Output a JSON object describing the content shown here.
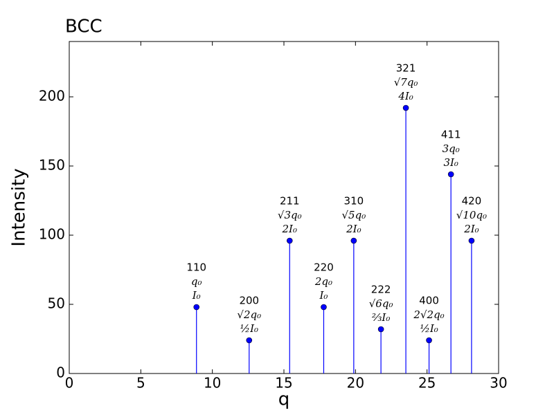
{
  "chart_data": {
    "type": "stem",
    "title": "BCC",
    "x_label": "q",
    "y_label": "Intensity",
    "x": [
      8.89,
      12.57,
      15.4,
      17.78,
      19.88,
      21.78,
      23.52,
      25.14,
      26.67,
      28.11
    ],
    "values": [
      48,
      24,
      96,
      48,
      96,
      32,
      192,
      24,
      144,
      96
    ],
    "point_labels": [
      [
        "110",
        "q₀",
        "I₀"
      ],
      [
        "200",
        "√2q₀",
        "½I₀"
      ],
      [
        "211",
        "√3q₀",
        "2I₀"
      ],
      [
        "220",
        "2q₀",
        "I₀"
      ],
      [
        "310",
        "√5q₀",
        "2I₀"
      ],
      [
        "222",
        "√6q₀",
        "⅔I₀"
      ],
      [
        "321",
        "√7q₀",
        "4I₀"
      ],
      [
        "400",
        "2√2q₀",
        "½I₀"
      ],
      [
        "411",
        "3q₀",
        "3I₀"
      ],
      [
        "420",
        "√10q₀",
        "2I₀"
      ]
    ],
    "color": "#0000ff",
    "xlim": [
      0,
      30
    ],
    "xticks": [
      0,
      5,
      10,
      15,
      20,
      25,
      30
    ],
    "ylim": [
      0,
      240
    ],
    "yticks": [
      0,
      50,
      100,
      150,
      200
    ]
  }
}
